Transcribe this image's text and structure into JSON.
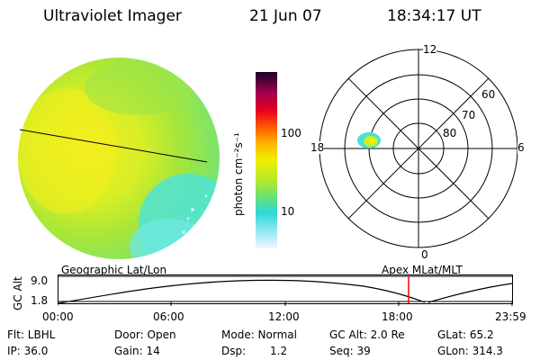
{
  "header": {
    "instrument": "Ultraviolet Imager",
    "date": "21 Jun 07",
    "time": "18:34:17 UT"
  },
  "colorbar": {
    "unit_label": "photon cm⁻²s⁻¹",
    "ticks": [
      "100",
      "10"
    ]
  },
  "polar": {
    "mlt_labels": [
      "12",
      "18",
      "6",
      "0"
    ],
    "lat_labels": [
      "60",
      "70",
      "80"
    ]
  },
  "strip": {
    "axis_title": "GC Alt",
    "y_ticks": [
      "9.0",
      "1.8"
    ],
    "left_title": "Geographic Lat/Lon",
    "right_title": "Apex MLat/MLT",
    "x_ticks": [
      "00:00",
      "06:00",
      "12:00",
      "18:00",
      "23:59"
    ]
  },
  "info": {
    "flt": "Flt: LBHL",
    "ip": "IP: 36.0",
    "door": "Door: Open",
    "gain": "Gain: 14",
    "mode": "Mode: Normal",
    "dsp_label": "Dsp:",
    "dsp_value": "1.2",
    "gc_alt": "GC Alt: 2.0 Re",
    "seq": "Seq: 39",
    "glat": "GLat:  65.2",
    "glon": "GLon: 314.3"
  },
  "colors": {
    "disk_main": "#bde830",
    "disk_dim": "#58e8c0",
    "marker": "#ff0000"
  }
}
